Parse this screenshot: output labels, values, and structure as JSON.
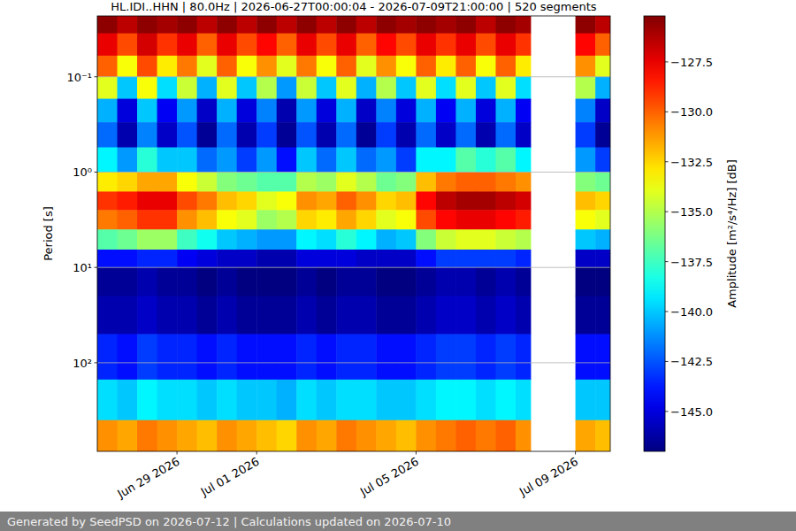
{
  "chart_data": {
    "type": "heatmap",
    "title": "HL.IDI..HHN | 80.0Hz | 2026-06-27T00:00:04 - 2026-07-09T21:00:00 | 520 segments",
    "y_label": "Period [s]",
    "log": "y",
    "grid": true,
    "xlim": [
      "2026-06-27T00:00",
      "2026-07-09T21:00"
    ],
    "xticks": [
      {
        "value": "2026-06-29T00:00",
        "label": "Jun 29 2026"
      },
      {
        "value": "2026-07-01T00:00",
        "label": "Jul 01 2026"
      },
      {
        "value": "2026-07-05T00:00",
        "label": "Jul 05 2026"
      },
      {
        "value": "2026-07-09T00:00",
        "label": "Jul 09 2026"
      }
    ],
    "ylim": [
      850,
      0.023
    ],
    "yticks": [
      {
        "value": 0.1,
        "label": "10⁻¹"
      },
      {
        "value": 1,
        "label": "10⁰"
      },
      {
        "value": 10,
        "label": "10¹"
      },
      {
        "value": 100,
        "label": "10²"
      }
    ],
    "x": [
      "2026-06-27T00:00",
      "2026-06-27T12:00",
      "2026-06-28T00:00",
      "2026-06-28T12:00",
      "2026-06-29T00:00",
      "2026-06-29T12:00",
      "2026-06-30T00:00",
      "2026-06-30T12:00",
      "2026-07-01T00:00",
      "2026-07-01T12:00",
      "2026-07-02T00:00",
      "2026-07-02T12:00",
      "2026-07-03T00:00",
      "2026-07-03T12:00",
      "2026-07-04T00:00",
      "2026-07-04T12:00",
      "2026-07-05T00:00",
      "2026-07-05T12:00",
      "2026-07-06T00:00",
      "2026-07-06T12:00",
      "2026-07-07T00:00",
      "2026-07-07T12:00",
      "2026-07-07T21:00",
      "2026-07-09T00:00",
      "2026-07-09T12:00",
      "2026-07-09T21:00"
    ],
    "y": [
      0.023,
      0.035,
      0.06,
      0.1,
      0.17,
      0.3,
      0.55,
      1,
      1.6,
      2.5,
      4,
      6.5,
      10,
      20,
      50,
      150,
      400,
      850
    ],
    "values": [
      [
        -125.5,
        -126.5,
        -125.5,
        -126,
        -125.5,
        -126.5,
        -125.5,
        -126.5,
        -125.5,
        -126.5,
        -125.5,
        -126.5,
        -125.5,
        -126.5,
        -125.5,
        -126,
        -125.5,
        -126,
        -125.5,
        -126.5,
        -125.5,
        -126,
        null,
        -125.5,
        -126.5
      ],
      [
        -127.5,
        -129.5,
        -127,
        -129,
        -127.5,
        -130,
        -127.5,
        -129.5,
        -128,
        -130,
        -127.5,
        -129.5,
        -127.5,
        -130,
        -128,
        -129.5,
        -127.5,
        -129,
        -127.5,
        -129.5,
        -127.5,
        -129,
        null,
        -128,
        -130
      ],
      [
        -130,
        -133.5,
        -129.5,
        -133,
        -130.5,
        -134,
        -130,
        -133.5,
        -131,
        -134,
        -130.5,
        -133.5,
        -130,
        -134,
        -131,
        -133.5,
        -130,
        -133,
        -130,
        -133.5,
        -130,
        -133,
        null,
        -131,
        -134
      ],
      [
        -134,
        -140,
        -133.5,
        -139.5,
        -134.5,
        -140.5,
        -134,
        -140,
        -135,
        -141,
        -134.5,
        -140,
        -134,
        -140.5,
        -135,
        -140,
        -134,
        -139.5,
        -134,
        -140,
        -134,
        -139.5,
        null,
        -135,
        -140.5
      ],
      [
        -140.5,
        -145,
        -140,
        -144.5,
        -141,
        -145.5,
        -140.5,
        -145,
        -141.5,
        -146,
        -141,
        -145,
        -140.5,
        -145.5,
        -141.5,
        -145,
        -140.5,
        -144.5,
        -140.5,
        -145,
        -140.5,
        -144.5,
        null,
        -141.5,
        -145.5
      ],
      [
        -142,
        -146,
        -141.5,
        -145.5,
        -142.5,
        -146.5,
        -142,
        -146,
        -143,
        -146.5,
        -142.5,
        -146,
        -142,
        -146.5,
        -143,
        -146,
        -142,
        -145.5,
        -142,
        -146,
        -142,
        -145.5,
        null,
        -143,
        -146.5
      ],
      [
        -139,
        -141,
        -138,
        -140,
        -140,
        -142,
        -141,
        -143,
        -141,
        -144,
        -140,
        -142,
        -140,
        -142,
        -141,
        -143,
        -139,
        -139,
        -137,
        -138,
        -137,
        -139,
        null,
        -141,
        -143
      ],
      [
        -133,
        -132.5,
        -131.5,
        -131.5,
        -133.5,
        -134.5,
        -136,
        -136.5,
        -137,
        -137,
        -135,
        -135.5,
        -134,
        -135,
        -136.5,
        -136,
        -132,
        -130.5,
        -130,
        -130,
        -130.5,
        -131,
        null,
        -136,
        -136.5
      ],
      [
        -129,
        -128.5,
        -127.5,
        -127.5,
        -129.5,
        -130.5,
        -132,
        -132.5,
        -134,
        -133.5,
        -131,
        -131.5,
        -130,
        -131,
        -132.5,
        -132,
        -128,
        -126.5,
        -126,
        -126,
        -126.5,
        -127,
        null,
        -132,
        -132.5
      ],
      [
        -130.5,
        -130,
        -129,
        -129,
        -131,
        -132,
        -133.5,
        -134,
        -135.5,
        -135,
        -132.5,
        -133,
        -131.5,
        -132.5,
        -134,
        -133.5,
        -129.5,
        -128,
        -127.5,
        -127.5,
        -128,
        -128.5,
        null,
        -133.5,
        -134
      ],
      [
        -137,
        -136.5,
        -135.5,
        -135.5,
        -137.5,
        -138.5,
        -140,
        -140.5,
        -141,
        -141,
        -139,
        -139.5,
        -138,
        -139,
        -140.5,
        -140,
        -136,
        -134.5,
        -134,
        -134,
        -134.5,
        -135,
        null,
        -140,
        -140.5
      ],
      [
        -144,
        -144,
        -143.5,
        -143.5,
        -144.5,
        -145,
        -145.5,
        -145.5,
        -146,
        -146,
        -145,
        -145,
        -145,
        -145.5,
        -145.5,
        -145.5,
        -144,
        -143,
        -143,
        -143,
        -143,
        -143.5,
        null,
        -145.5,
        -145.5
      ],
      [
        -146.5,
        -146.5,
        -146,
        -146.5,
        -146.5,
        -147,
        -146.5,
        -147,
        -147,
        -147,
        -146.5,
        -147,
        -146.5,
        -146.5,
        -147,
        -147,
        -146.5,
        -146,
        -146,
        -146.5,
        -146,
        -146.5,
        null,
        -147,
        -147
      ],
      [
        -146,
        -146,
        -145.5,
        -146,
        -146,
        -146.5,
        -146,
        -146.5,
        -146.5,
        -146.5,
        -146,
        -146.5,
        -146,
        -146,
        -146.5,
        -146.5,
        -146,
        -145.5,
        -145.5,
        -146,
        -145.5,
        -146,
        null,
        -146.5,
        -146.5
      ],
      [
        -143.5,
        -144,
        -143,
        -143.5,
        -143.5,
        -144,
        -143.5,
        -144,
        -144,
        -144,
        -143.5,
        -144,
        -143.5,
        -143.5,
        -144,
        -144,
        -143.5,
        -143,
        -143,
        -143.5,
        -143,
        -143.5,
        null,
        -144,
        -144
      ],
      [
        -139.5,
        -140,
        -139,
        -139.5,
        -139.5,
        -140,
        -139.5,
        -140,
        -140,
        -140.5,
        -139.5,
        -140,
        -139.5,
        -139.5,
        -140,
        -140,
        -139.5,
        -139,
        -139,
        -139.5,
        -139,
        -139.5,
        null,
        -140,
        -140
      ],
      [
        -131,
        -131.5,
        -130.5,
        -131,
        -131.5,
        -132,
        -131,
        -131.5,
        -132,
        -132.5,
        -131,
        -131.5,
        -130.5,
        -131,
        -131.5,
        -132,
        -131,
        -130.5,
        -130,
        -130.5,
        -130,
        -131,
        null,
        -131.5,
        -132
      ]
    ],
    "colorbar": {
      "label": "Amplitude [m²/s⁴/Hz] [dB]",
      "lim": [
        -147,
        -125.2
      ],
      "ticks": [
        {
          "value": -127.5,
          "label": "−127.5"
        },
        {
          "value": -130,
          "label": "−130.0"
        },
        {
          "value": -132.5,
          "label": "−132.5"
        },
        {
          "value": -135,
          "label": "−135.0"
        },
        {
          "value": -137.5,
          "label": "−137.5"
        },
        {
          "value": -140,
          "label": "−140.0"
        },
        {
          "value": -142.5,
          "label": "−142.5"
        },
        {
          "value": -145,
          "label": "−145.0"
        }
      ]
    }
  },
  "footer": "Generated by SeedPSD on 2026-07-12 | Calculations updated on 2026-07-10"
}
